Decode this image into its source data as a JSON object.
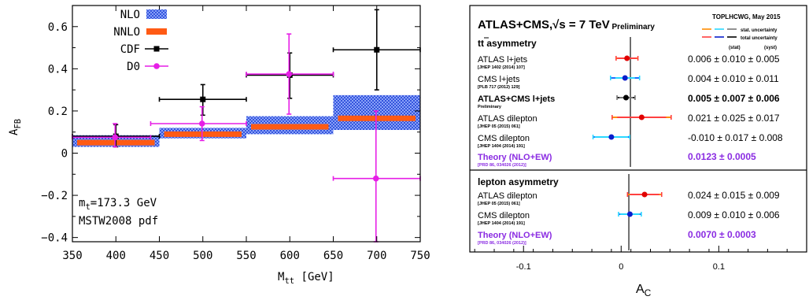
{
  "chart_data": [
    {
      "type": "scatter",
      "xlabel_main": "M",
      "xlabel_sub": "tt",
      "xlabel_unit": "[GeV]",
      "ylabel_main": "A",
      "ylabel_sub": "FB",
      "xlim": [
        350,
        750
      ],
      "ylim": [
        -0.42,
        0.7
      ],
      "xticks": [
        350,
        400,
        450,
        500,
        550,
        600,
        650,
        700,
        750
      ],
      "xtick_labels": [
        "350",
        "400",
        "450",
        "500",
        "550",
        "600",
        "650",
        "700",
        "750"
      ],
      "yticks": [
        -0.4,
        -0.2,
        0,
        0.2,
        0.4,
        0.6
      ],
      "ytick_labels": [
        "−0.4",
        "−0.2",
        "0",
        "0.2",
        "0.4",
        "0.6"
      ],
      "legend": [
        "NLO",
        "NNLO",
        "CDF",
        "D0"
      ],
      "legend_position": "top-left",
      "bins": [
        [
          350,
          450
        ],
        [
          450,
          550
        ],
        [
          550,
          650
        ],
        [
          650,
          750
        ]
      ],
      "nlo_band": [
        [
          0.03,
          0.085
        ],
        [
          0.07,
          0.12
        ],
        [
          0.09,
          0.175
        ],
        [
          0.11,
          0.275
        ]
      ],
      "nnlo_values": [
        0.05,
        0.09,
        0.125,
        0.165
      ],
      "cdf": {
        "x": [
          400,
          500,
          600,
          700
        ],
        "y": [
          0.08,
          0.255,
          0.37,
          0.49
        ],
        "xerr": [
          [
            350,
            450
          ],
          [
            450,
            550
          ],
          [
            550,
            650
          ],
          [
            650,
            750
          ]
        ],
        "yerr": [
          [
            0.03,
            0.135
          ],
          [
            0.18,
            0.325
          ],
          [
            0.26,
            0.475
          ],
          [
            0.3,
            0.68
          ]
        ]
      },
      "d0": {
        "x": [
          400,
          500,
          600,
          700
        ],
        "y": [
          0.075,
          0.14,
          0.375,
          -0.12
        ],
        "xerr": [
          [
            350,
            440
          ],
          [
            440,
            550
          ],
          [
            550,
            650
          ],
          [
            650,
            750
          ]
        ],
        "yerr": [
          [
            0.03,
            0.14
          ],
          [
            0.06,
            0.22
          ],
          [
            0.185,
            0.565
          ],
          [
            -0.42,
            0.2
          ]
        ]
      },
      "annotation_mass": "m",
      "annotation_mass_sub": "t",
      "annotation_mass_value": "=173.3 GeV",
      "annotation_pdf": "MSTW2008 pdf",
      "colors": {
        "cdf": "#000000",
        "d0": "#e61ee6",
        "nnlo": "#ff5a14",
        "nlo": "#1d3fd6"
      }
    },
    {
      "type": "scatter",
      "title": "ATLAS+CMS,",
      "title_sqrt": "√s = 7 TeV",
      "title_prelim": "Preliminary",
      "corner_label": "TOPLHCWG, May 2015",
      "legend_stat": "stat. uncertainty",
      "legend_total": "total uncertainty",
      "stat_header": "(stat)",
      "syst_header": "(syst)",
      "xlabel_main": "A",
      "xlabel_sub": "C",
      "xlim": [
        -0.155,
        0.19
      ],
      "xticks": [
        -0.1,
        0,
        0.1
      ],
      "xtick_labels": [
        "-0.1",
        "0",
        "0.1"
      ],
      "reference_x": 0.0095,
      "sections": [
        {
          "title_pre": "t",
          "title_bar": "t",
          "title_post": " asymmetry",
          "entries": [
            {
              "label": "ATLAS l+jets",
              "ref": "[JHEP 1402 (2014) 107]",
              "value": 0.006,
              "stat": 0.01,
              "syst": 0.005,
              "text": "0.006 ± 0.010 ± 0.005",
              "color": "#ff8c00",
              "stat_color": "#ff4040",
              "dot": "#e00000",
              "bold": false,
              "theory": false
            },
            {
              "label": "CMS l+jets",
              "ref": "[PLB 717 (2012) 129]",
              "value": 0.004,
              "stat": 0.01,
              "syst": 0.011,
              "text": "0.004 ± 0.010 ± 0.011",
              "color": "#1e6cff",
              "stat_color": "#2ad8ff",
              "dot": "#0a1ecc",
              "bold": false,
              "theory": false
            },
            {
              "label": "ATLAS+CMS l+jets",
              "ref": "Preliminary",
              "value": 0.005,
              "stat": 0.007,
              "syst": 0.006,
              "text": "0.005 ± 0.007 ± 0.006",
              "color": "#222222",
              "stat_color": "#777777",
              "dot": "#000000",
              "bold": true,
              "theory": false
            },
            {
              "label": "ATLAS dilepton",
              "ref": "[JHEP 05 (2015) 061]",
              "value": 0.021,
              "stat": 0.025,
              "syst": 0.017,
              "text": "0.021 ± 0.025 ± 0.017",
              "color": "#ff8c00",
              "stat_color": "#ff4040",
              "dot": "#e00000",
              "bold": false,
              "theory": false
            },
            {
              "label": "CMS dilepton",
              "ref": "[JHEP 1404 (2014) 191]",
              "value": -0.01,
              "stat": 0.017,
              "syst": 0.008,
              "text": "-0.010 ± 0.017 ± 0.008",
              "color": "#1e6cff",
              "stat_color": "#2ad8ff",
              "dot": "#0a1ecc",
              "bold": false,
              "theory": false
            },
            {
              "label": "Theory (NLO+EW)",
              "ref": "[PRD 86, 034026 (2012)]",
              "value": 0.0123,
              "text": "0.0123 ± 0.0005",
              "bold": true,
              "theory": true
            }
          ]
        },
        {
          "title_pre": "lepton asymmetry",
          "title_bar": "",
          "title_post": "",
          "entries": [
            {
              "label": "ATLAS dilepton",
              "ref": "[JHEP 05 (2015) 061]",
              "value": 0.024,
              "stat": 0.015,
              "syst": 0.009,
              "text": "0.024 ± 0.015 ± 0.009",
              "color": "#ff8c00",
              "stat_color": "#ff4040",
              "dot": "#e00000",
              "bold": false,
              "theory": false
            },
            {
              "label": "CMS dilepton",
              "ref": "[JHEP 1404 (2014) 191]",
              "value": 0.009,
              "stat": 0.01,
              "syst": 0.006,
              "text": "0.009 ± 0.010 ± 0.006",
              "color": "#1e6cff",
              "stat_color": "#2ad8ff",
              "dot": "#0a1ecc",
              "bold": false,
              "theory": false
            },
            {
              "label": "Theory (NLO+EW)",
              "ref": "[PRD 86, 034026 (2012)]",
              "value": 0.007,
              "text": "0.0070 ± 0.0003",
              "bold": true,
              "theory": true
            }
          ]
        }
      ],
      "colors": {
        "theory": "#8a2be2"
      }
    }
  ]
}
